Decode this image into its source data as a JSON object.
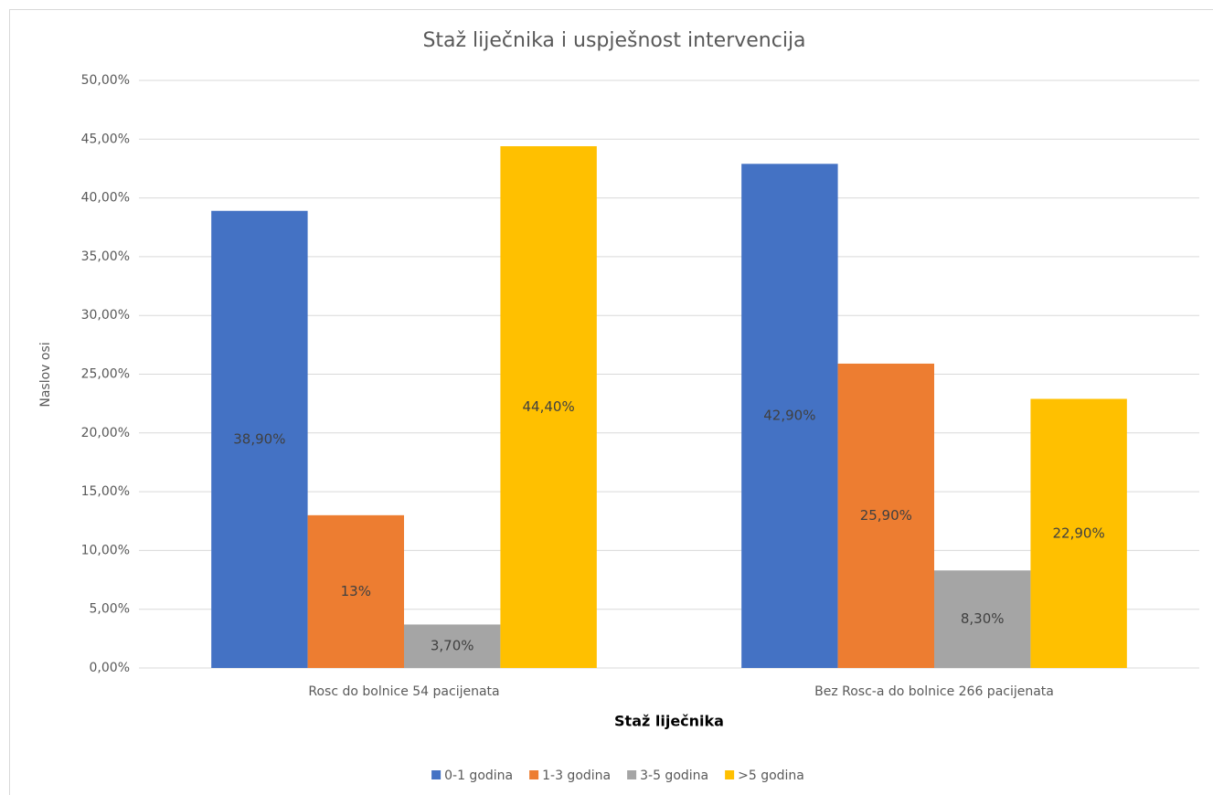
{
  "chart_data": {
    "type": "bar",
    "title": "Staž liječnika i uspješnost intervencija",
    "x_label": "Staž liječnika",
    "y_label": "Naslov osi",
    "categories": [
      "Rosc do bolnice 54 pacijenata",
      "Bez Rosc-a do bolnice 266 pacijenata"
    ],
    "series": [
      {
        "name": "0-1 godina",
        "color": "#4472c4",
        "values": [
          38.9,
          42.9
        ],
        "value_labels": [
          "38,90%",
          "42,90%"
        ]
      },
      {
        "name": "1-3 godina",
        "color": "#ed7d31",
        "values": [
          13,
          25.9
        ],
        "value_labels": [
          "13%",
          "25,90%"
        ]
      },
      {
        "name": "3-5 godina",
        "color": "#a5a5a5",
        "values": [
          3.7,
          8.3
        ],
        "value_labels": [
          "3,70%",
          "8,30%"
        ]
      },
      {
        "name": ">5 godina",
        "color": "#ffc000",
        "values": [
          44.4,
          22.9
        ],
        "value_labels": [
          "44,40%",
          "22,90%"
        ]
      }
    ],
    "ylim": [
      0,
      50
    ],
    "yticks": [
      {
        "value": 0,
        "label": "0,00%"
      },
      {
        "value": 5,
        "label": "5,00%"
      },
      {
        "value": 10,
        "label": "10,00%"
      },
      {
        "value": 15,
        "label": "15,00%"
      },
      {
        "value": 20,
        "label": "20,00%"
      },
      {
        "value": 25,
        "label": "25,00%"
      },
      {
        "value": 30,
        "label": "30,00%"
      },
      {
        "value": 35,
        "label": "35,00%"
      },
      {
        "value": 40,
        "label": "40,00%"
      },
      {
        "value": 45,
        "label": "45,00%"
      },
      {
        "value": 50,
        "label": "50,00%"
      }
    ],
    "grid": true,
    "legend": "bottom"
  }
}
